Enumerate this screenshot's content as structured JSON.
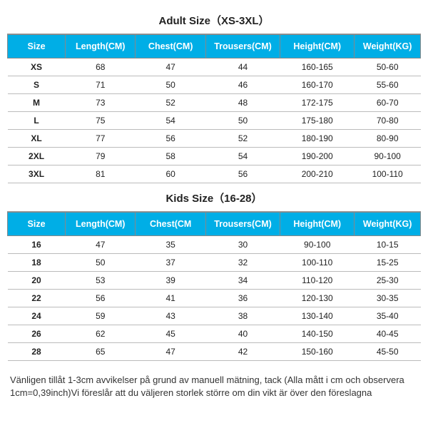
{
  "adult": {
    "title": "Adult Size（XS-3XL）",
    "headers": [
      "Size",
      "Length(CM)",
      "Chest(CM)",
      "Trousers(CM)",
      "Height(CM)",
      "Weight(KG)"
    ],
    "rows": [
      [
        "XS",
        "68",
        "47",
        "44",
        "160-165",
        "50-60"
      ],
      [
        "S",
        "71",
        "50",
        "46",
        "160-170",
        "55-60"
      ],
      [
        "M",
        "73",
        "52",
        "48",
        "172-175",
        "60-70"
      ],
      [
        "L",
        "75",
        "54",
        "50",
        "175-180",
        "70-80"
      ],
      [
        "XL",
        "77",
        "56",
        "52",
        "180-190",
        "80-90"
      ],
      [
        "2XL",
        "79",
        "58",
        "54",
        "190-200",
        "90-100"
      ],
      [
        "3XL",
        "81",
        "60",
        "56",
        "200-210",
        "100-110"
      ]
    ]
  },
  "kids": {
    "title": "Kids Size（16-28）",
    "headers": [
      "Size",
      "Length(CM)",
      "Chest(CM",
      "Trousers(CM)",
      "Height(CM)",
      "Weight(KG)"
    ],
    "rows": [
      [
        "16",
        "47",
        "35",
        "30",
        "90-100",
        "10-15"
      ],
      [
        "18",
        "50",
        "37",
        "32",
        "100-110",
        "15-25"
      ],
      [
        "20",
        "53",
        "39",
        "34",
        "110-120",
        "25-30"
      ],
      [
        "22",
        "56",
        "41",
        "36",
        "120-130",
        "30-35"
      ],
      [
        "24",
        "59",
        "43",
        "38",
        "130-140",
        "35-40"
      ],
      [
        "26",
        "62",
        "45",
        "40",
        "140-150",
        "40-45"
      ],
      [
        "28",
        "65",
        "47",
        "42",
        "150-160",
        "45-50"
      ]
    ]
  },
  "footnote": "Vänligen tillåt 1-3cm avvikelser på grund av manuell mätning, tack (Alla mått i cm och observera 1cm=0,39inch)Vi föreslår att du väljeren storlek större om din vikt är över den föreslagna",
  "style": {
    "header_bg": "#00aee6",
    "header_fg": "#ffffff",
    "border_color": "#888888",
    "row_border": "#bbbbbb",
    "title_fontsize": 15,
    "header_fontsize": 12.5,
    "cell_fontsize": 12,
    "footnote_fontsize": 13,
    "col_widths_pct": [
      14,
      17,
      17,
      18,
      18,
      16
    ]
  }
}
